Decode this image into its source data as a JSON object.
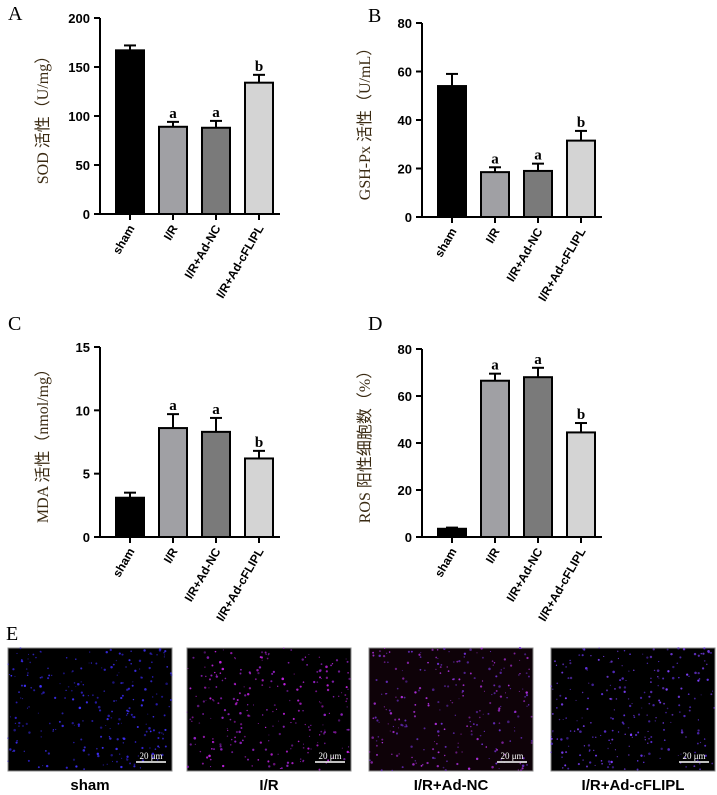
{
  "colors": {
    "sham": "#000000",
    "ir": "#a0a0a4",
    "irnc": "#7a7a7a",
    "ircflip": "#d4d4d4",
    "ylabel": "#3a2a12"
  },
  "chart_data": [
    {
      "panel": "A",
      "type": "bar",
      "ylabel": "SOD 活性（U/mg）",
      "ylim": [
        0,
        200
      ],
      "ticks": [
        0,
        50,
        100,
        150,
        200
      ],
      "categories": [
        "sham",
        "I/R",
        "I/R+Ad-NC",
        "I/R+Ad-cFLIPL"
      ],
      "values": [
        167,
        89,
        88,
        134
      ],
      "errors": [
        5,
        5,
        7,
        8
      ],
      "annotations": [
        "",
        "a",
        "a",
        "b"
      ]
    },
    {
      "panel": "B",
      "type": "bar",
      "ylabel": "GSH-Px 活性（U/mL）",
      "ylim": [
        0,
        80
      ],
      "ticks": [
        0,
        20,
        40,
        60,
        80
      ],
      "categories": [
        "sham",
        "I/R",
        "I/R+Ad-NC",
        "I/R+Ad-cFLIPL"
      ],
      "values": [
        54,
        18.5,
        19,
        31.5
      ],
      "errors": [
        5,
        2,
        3,
        4
      ],
      "annotations": [
        "",
        "a",
        "a",
        "b"
      ]
    },
    {
      "panel": "C",
      "type": "bar",
      "ylabel": "MDA 活性（nmol/mg）",
      "ylim": [
        0,
        15
      ],
      "ticks": [
        0,
        5,
        10,
        15
      ],
      "categories": [
        "sham",
        "I/R",
        "I/R+Ad-NC",
        "I/R+Ad-cFLIPL"
      ],
      "values": [
        3.1,
        8.6,
        8.3,
        6.2
      ],
      "errors": [
        0.4,
        1.1,
        1.1,
        0.6
      ],
      "annotations": [
        "",
        "a",
        "a",
        "b"
      ]
    },
    {
      "panel": "D",
      "type": "bar",
      "ylabel": "ROS 阳性细胞数（%）",
      "ylim": [
        0,
        80
      ],
      "ticks": [
        0,
        20,
        40,
        60,
        80
      ],
      "categories": [
        "sham",
        "I/R",
        "I/R+Ad-NC",
        "I/R+Ad-cFLIPL"
      ],
      "values": [
        3.5,
        66.5,
        68,
        44.5
      ],
      "errors": [
        0.5,
        3,
        4,
        4
      ],
      "annotations": [
        "",
        "a",
        "a",
        "b"
      ]
    }
  ],
  "panel_e": {
    "label": "E",
    "scale_bar": "20 μm",
    "images": [
      "sham",
      "I/R",
      "I/R+Ad-NC",
      "I/R+Ad-cFLIPL"
    ]
  }
}
